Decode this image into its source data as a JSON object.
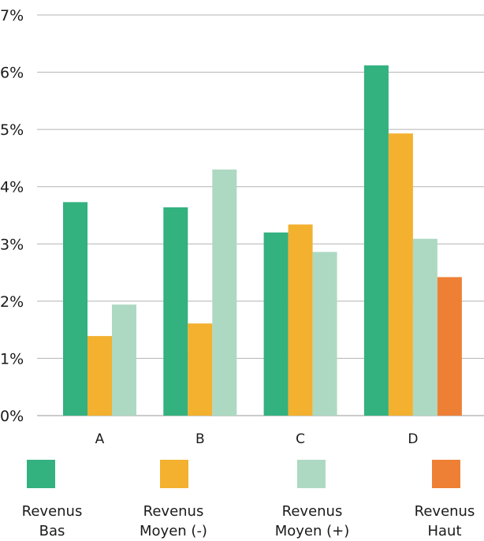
{
  "chart_data": {
    "type": "bar",
    "categories": [
      "A",
      "B",
      "C",
      "D"
    ],
    "y_ticks": [
      "0%",
      "1%",
      "2%",
      "3%",
      "4%",
      "5%",
      "6%",
      "7%"
    ],
    "ylim": [
      0,
      7
    ],
    "grid": true,
    "legend_position": "bottom",
    "series": [
      {
        "name": "Revenus Bas",
        "legend_lines": [
          "Revenus",
          "Bas"
        ],
        "color": "#33b17f",
        "values": [
          3.73,
          3.64,
          3.2,
          6.12
        ]
      },
      {
        "name": "Revenus Moyen (-)",
        "legend_lines": [
          "Revenus",
          "Moyen (-)"
        ],
        "color": "#f3b12f",
        "values": [
          1.39,
          1.61,
          3.34,
          4.93
        ]
      },
      {
        "name": "Revenus Moyen (+)",
        "legend_lines": [
          "Revenus",
          "Moyen (+)"
        ],
        "color": "#add9c2",
        "values": [
          1.94,
          4.3,
          2.86,
          3.09
        ]
      },
      {
        "name": "Revenus Haut",
        "legend_lines": [
          "Revenus",
          "Haut"
        ],
        "color": "#ee8035",
        "values": [
          null,
          null,
          null,
          2.42
        ]
      }
    ]
  }
}
